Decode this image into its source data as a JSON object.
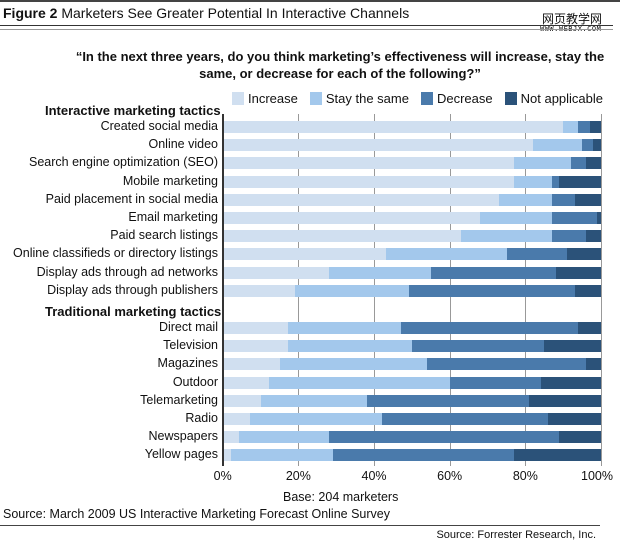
{
  "title": {
    "figure": "Figure 2",
    "text": "Marketers See Greater Potential In Interactive Channels"
  },
  "watermark": {
    "line1": "网页教学网",
    "line2": "WWW.WEBJX.COM"
  },
  "chart_data": {
    "type": "bar",
    "orientation": "horizontal-stacked-100",
    "title": "“In the next three years, do you think marketing’s effectiveness will increase, stay the same, or decrease for each of the following?”",
    "legend_position": "top",
    "grid": true,
    "xlim": [
      0,
      100
    ],
    "x_ticks": [
      "0%",
      "20%",
      "40%",
      "60%",
      "80%",
      "100%"
    ],
    "series": [
      {
        "name": "Increase",
        "color": "#d0dff0"
      },
      {
        "name": "Stay the same",
        "color": "#a3c8ec"
      },
      {
        "name": "Decrease",
        "color": "#4a7aab"
      },
      {
        "name": "Not applicable",
        "color": "#2b5279"
      }
    ],
    "groups": [
      {
        "name": "Interactive marketing tactics",
        "rows": [
          {
            "label": "Created social media",
            "values": [
              90,
              4,
              3,
              3
            ]
          },
          {
            "label": "Online video",
            "values": [
              82,
              13,
              3,
              2
            ]
          },
          {
            "label": "Search engine optimization (SEO)",
            "values": [
              77,
              15,
              4,
              4
            ]
          },
          {
            "label": "Mobile marketing",
            "values": [
              77,
              10,
              2,
              11
            ]
          },
          {
            "label": "Paid placement in social media",
            "values": [
              73,
              14,
              6,
              7
            ]
          },
          {
            "label": "Email marketing",
            "values": [
              68,
              19,
              12,
              1
            ]
          },
          {
            "label": "Paid search listings",
            "values": [
              63,
              24,
              9,
              4
            ]
          },
          {
            "label": "Online classifieds or directory listings",
            "values": [
              43,
              32,
              16,
              9
            ]
          },
          {
            "label": "Display ads through ad networks",
            "values": [
              28,
              27,
              33,
              12
            ]
          },
          {
            "label": "Display ads through publishers",
            "values": [
              19,
              30,
              44,
              7
            ]
          }
        ]
      },
      {
        "name": "Traditional marketing tactics",
        "rows": [
          {
            "label": "Direct mail",
            "values": [
              17,
              30,
              47,
              6
            ]
          },
          {
            "label": "Television",
            "values": [
              17,
              33,
              35,
              15
            ]
          },
          {
            "label": "Magazines",
            "values": [
              15,
              39,
              42,
              4
            ]
          },
          {
            "label": "Outdoor",
            "values": [
              12,
              48,
              24,
              16
            ]
          },
          {
            "label": "Telemarketing",
            "values": [
              10,
              28,
              43,
              19
            ]
          },
          {
            "label": "Radio",
            "values": [
              7,
              35,
              44,
              14
            ]
          },
          {
            "label": "Newspapers",
            "values": [
              4,
              24,
              61,
              11
            ]
          },
          {
            "label": "Yellow pages",
            "values": [
              2,
              27,
              48,
              23
            ]
          }
        ]
      }
    ]
  },
  "base": "Base: 204 marketers",
  "source": "Source: March 2009 US Interactive Marketing Forecast Online Survey",
  "source_right": "Source: Forrester Research, Inc."
}
